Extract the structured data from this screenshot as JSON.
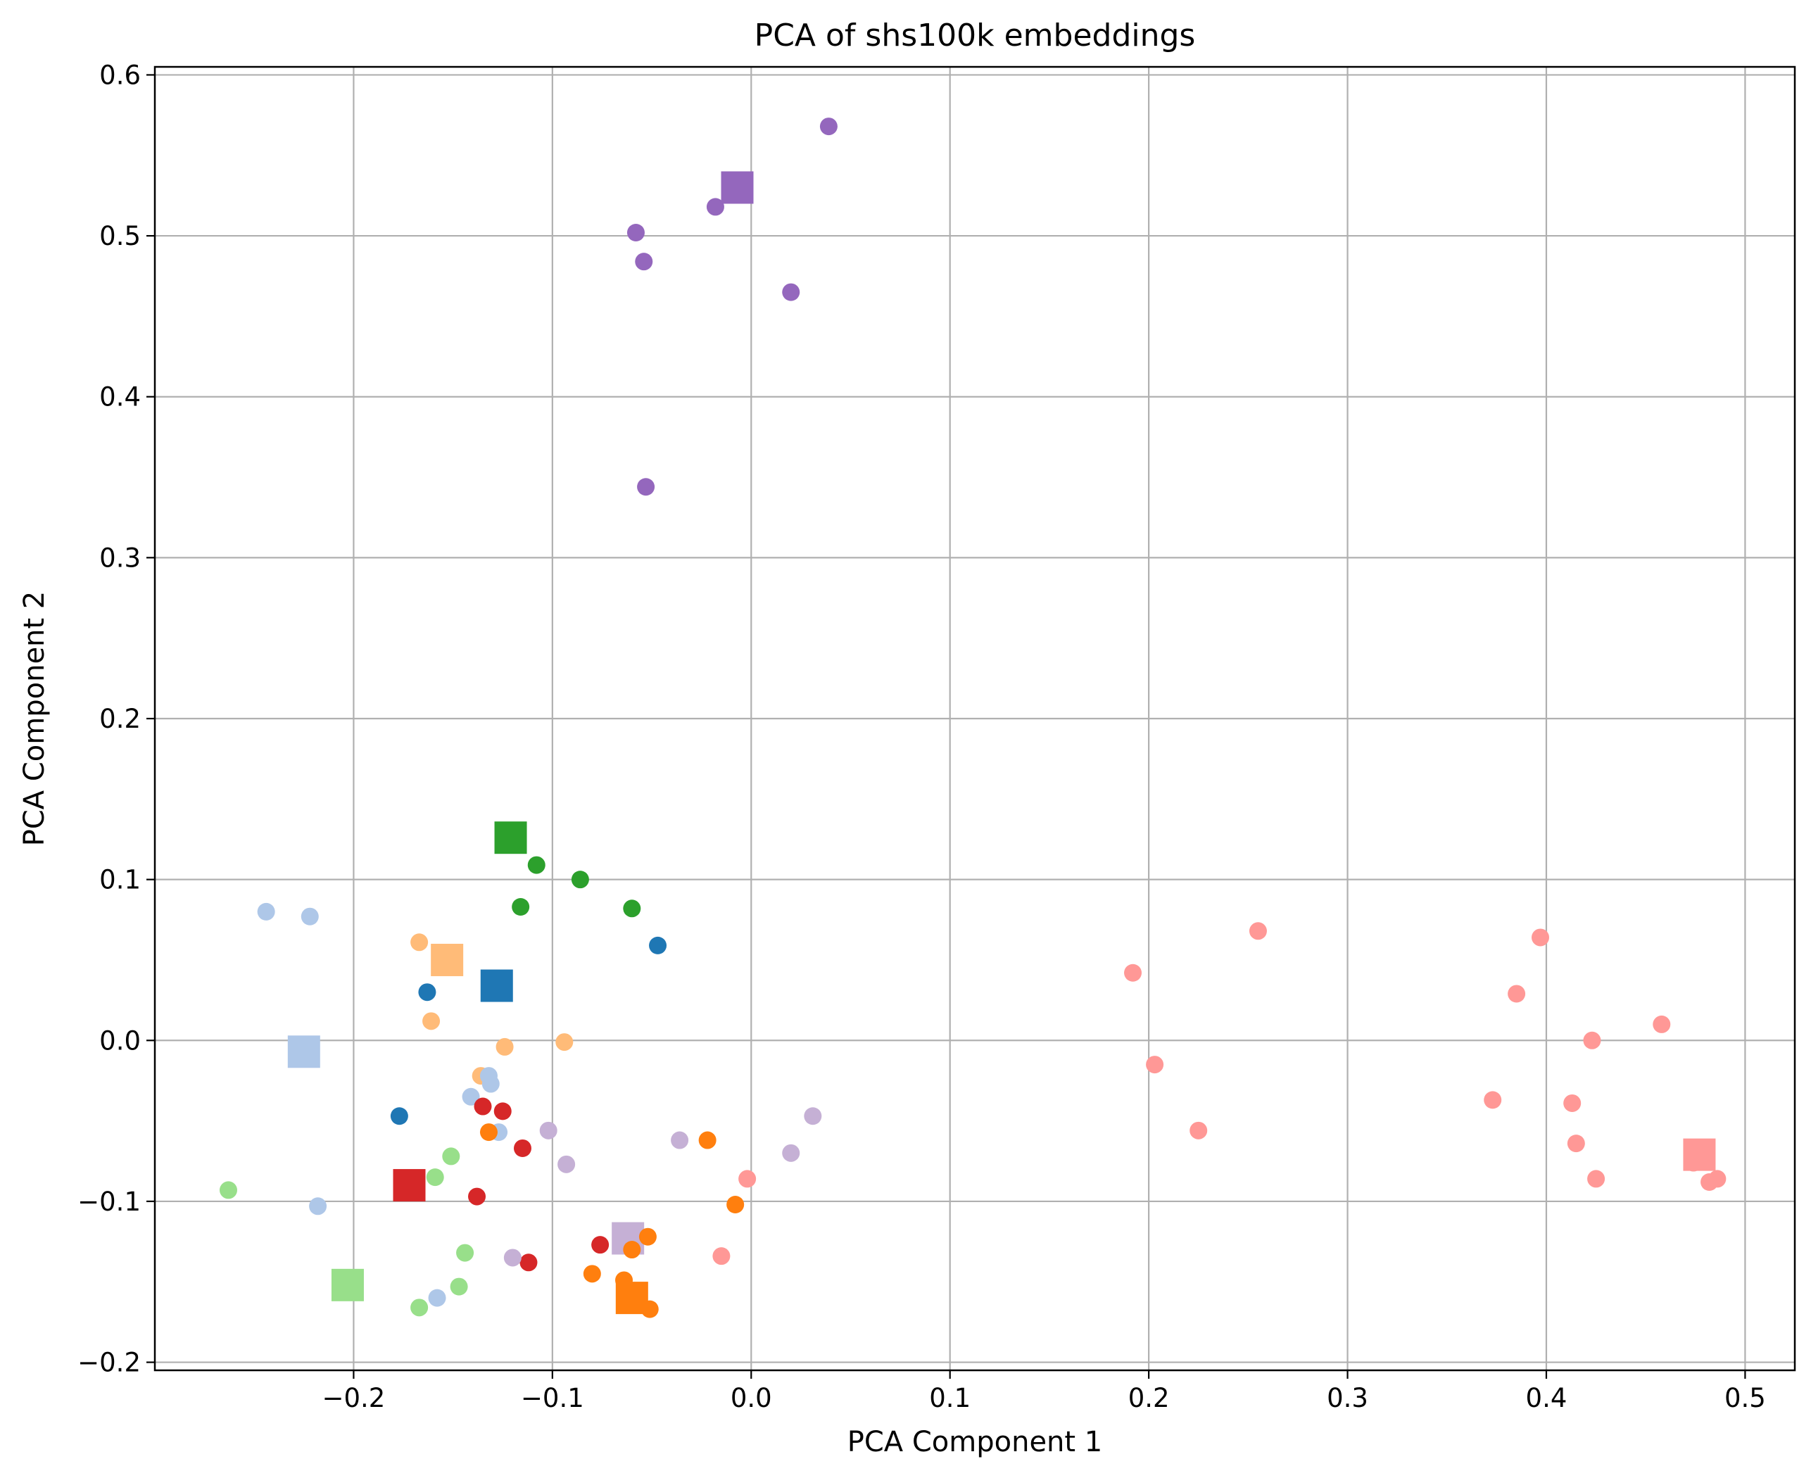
{
  "chart_data": {
    "type": "scatter",
    "title": "PCA of shs100k embeddings",
    "xlabel": "PCA Component 1",
    "ylabel": "PCA Component 2",
    "xlim": [
      -0.3,
      0.525
    ],
    "ylim": [
      -0.205,
      0.605
    ],
    "xticks": [
      -0.2,
      -0.1,
      0.0,
      0.1,
      0.2,
      0.3,
      0.4,
      0.5
    ],
    "yticks": [
      -0.2,
      -0.1,
      0.0,
      0.1,
      0.2,
      0.3,
      0.4,
      0.5,
      0.6
    ],
    "xtick_labels": [
      "−0.2",
      "−0.1",
      "0.0",
      "0.1",
      "0.2",
      "0.3",
      "0.4",
      "0.5"
    ],
    "ytick_labels": [
      "−0.2",
      "−0.1",
      "0.0",
      "0.1",
      "0.2",
      "0.3",
      "0.4",
      "0.5",
      "0.6"
    ],
    "grid": true,
    "legend": "none",
    "series": [
      {
        "color": "#9467bd",
        "centroid": [
          -0.007,
          0.53
        ],
        "points": [
          [
            0.039,
            0.568
          ],
          [
            -0.018,
            0.518
          ],
          [
            -0.058,
            0.502
          ],
          [
            -0.054,
            0.484
          ],
          [
            0.02,
            0.465
          ],
          [
            -0.053,
            0.344
          ]
        ]
      },
      {
        "color": "#2ca02c",
        "centroid": [
          -0.121,
          0.126
        ],
        "points": [
          [
            -0.108,
            0.109
          ],
          [
            -0.086,
            0.1
          ],
          [
            -0.116,
            0.083
          ],
          [
            -0.06,
            0.082
          ]
        ]
      },
      {
        "color": "#1f77b4",
        "centroid": [
          -0.128,
          0.034
        ],
        "points": [
          [
            -0.047,
            0.059
          ],
          [
            -0.163,
            0.03
          ],
          [
            -0.177,
            -0.047
          ]
        ]
      },
      {
        "color": "#ffbb78",
        "centroid": [
          -0.153,
          0.05
        ],
        "points": [
          [
            -0.167,
            0.061
          ],
          [
            -0.161,
            0.012
          ],
          [
            -0.124,
            -0.004
          ],
          [
            -0.094,
            -0.001
          ],
          [
            -0.136,
            -0.022
          ]
        ]
      },
      {
        "color": "#aec7e8",
        "centroid": [
          -0.225,
          -0.007
        ],
        "points": [
          [
            -0.244,
            0.08
          ],
          [
            -0.222,
            0.077
          ],
          [
            -0.131,
            -0.027
          ],
          [
            -0.132,
            -0.022
          ],
          [
            -0.141,
            -0.035
          ],
          [
            -0.127,
            -0.057
          ],
          [
            -0.218,
            -0.103
          ],
          [
            -0.158,
            -0.16
          ]
        ]
      },
      {
        "color": "#d62728",
        "centroid": [
          -0.172,
          -0.09
        ],
        "points": [
          [
            -0.135,
            -0.041
          ],
          [
            -0.125,
            -0.044
          ],
          [
            -0.115,
            -0.067
          ],
          [
            -0.138,
            -0.097
          ],
          [
            -0.076,
            -0.127
          ],
          [
            -0.112,
            -0.138
          ]
        ]
      },
      {
        "color": "#98df8a",
        "centroid": [
          -0.203,
          -0.152
        ],
        "points": [
          [
            -0.263,
            -0.093
          ],
          [
            -0.151,
            -0.072
          ],
          [
            -0.159,
            -0.085
          ],
          [
            -0.144,
            -0.132
          ],
          [
            -0.147,
            -0.153
          ],
          [
            -0.167,
            -0.166
          ]
        ]
      },
      {
        "color": "#c5b0d5",
        "centroid": [
          -0.062,
          -0.123
        ],
        "points": [
          [
            0.031,
            -0.047
          ],
          [
            -0.102,
            -0.056
          ],
          [
            -0.036,
            -0.062
          ],
          [
            0.02,
            -0.07
          ],
          [
            -0.093,
            -0.077
          ],
          [
            -0.12,
            -0.135
          ]
        ]
      },
      {
        "color": "#ff7f0e",
        "centroid": [
          -0.06,
          -0.16
        ],
        "points": [
          [
            -0.132,
            -0.057
          ],
          [
            -0.022,
            -0.062
          ],
          [
            -0.008,
            -0.102
          ],
          [
            -0.052,
            -0.122
          ],
          [
            -0.06,
            -0.13
          ],
          [
            -0.08,
            -0.145
          ],
          [
            -0.064,
            -0.149
          ],
          [
            -0.063,
            -0.155
          ],
          [
            -0.051,
            -0.167
          ]
        ]
      },
      {
        "color": "#ff9896",
        "centroid": [
          0.477,
          -0.071
        ],
        "points": [
          [
            0.255,
            0.068
          ],
          [
            0.397,
            0.064
          ],
          [
            0.192,
            0.042
          ],
          [
            0.385,
            0.029
          ],
          [
            0.458,
            0.01
          ],
          [
            0.423,
            0.0
          ],
          [
            0.203,
            -0.015
          ],
          [
            0.373,
            -0.037
          ],
          [
            0.413,
            -0.039
          ],
          [
            0.225,
            -0.056
          ],
          [
            0.415,
            -0.064
          ],
          [
            0.474,
            -0.076
          ],
          [
            0.425,
            -0.086
          ],
          [
            0.486,
            -0.086
          ],
          [
            0.482,
            -0.088
          ],
          [
            -0.002,
            -0.086
          ],
          [
            -0.015,
            -0.134
          ]
        ]
      }
    ]
  }
}
